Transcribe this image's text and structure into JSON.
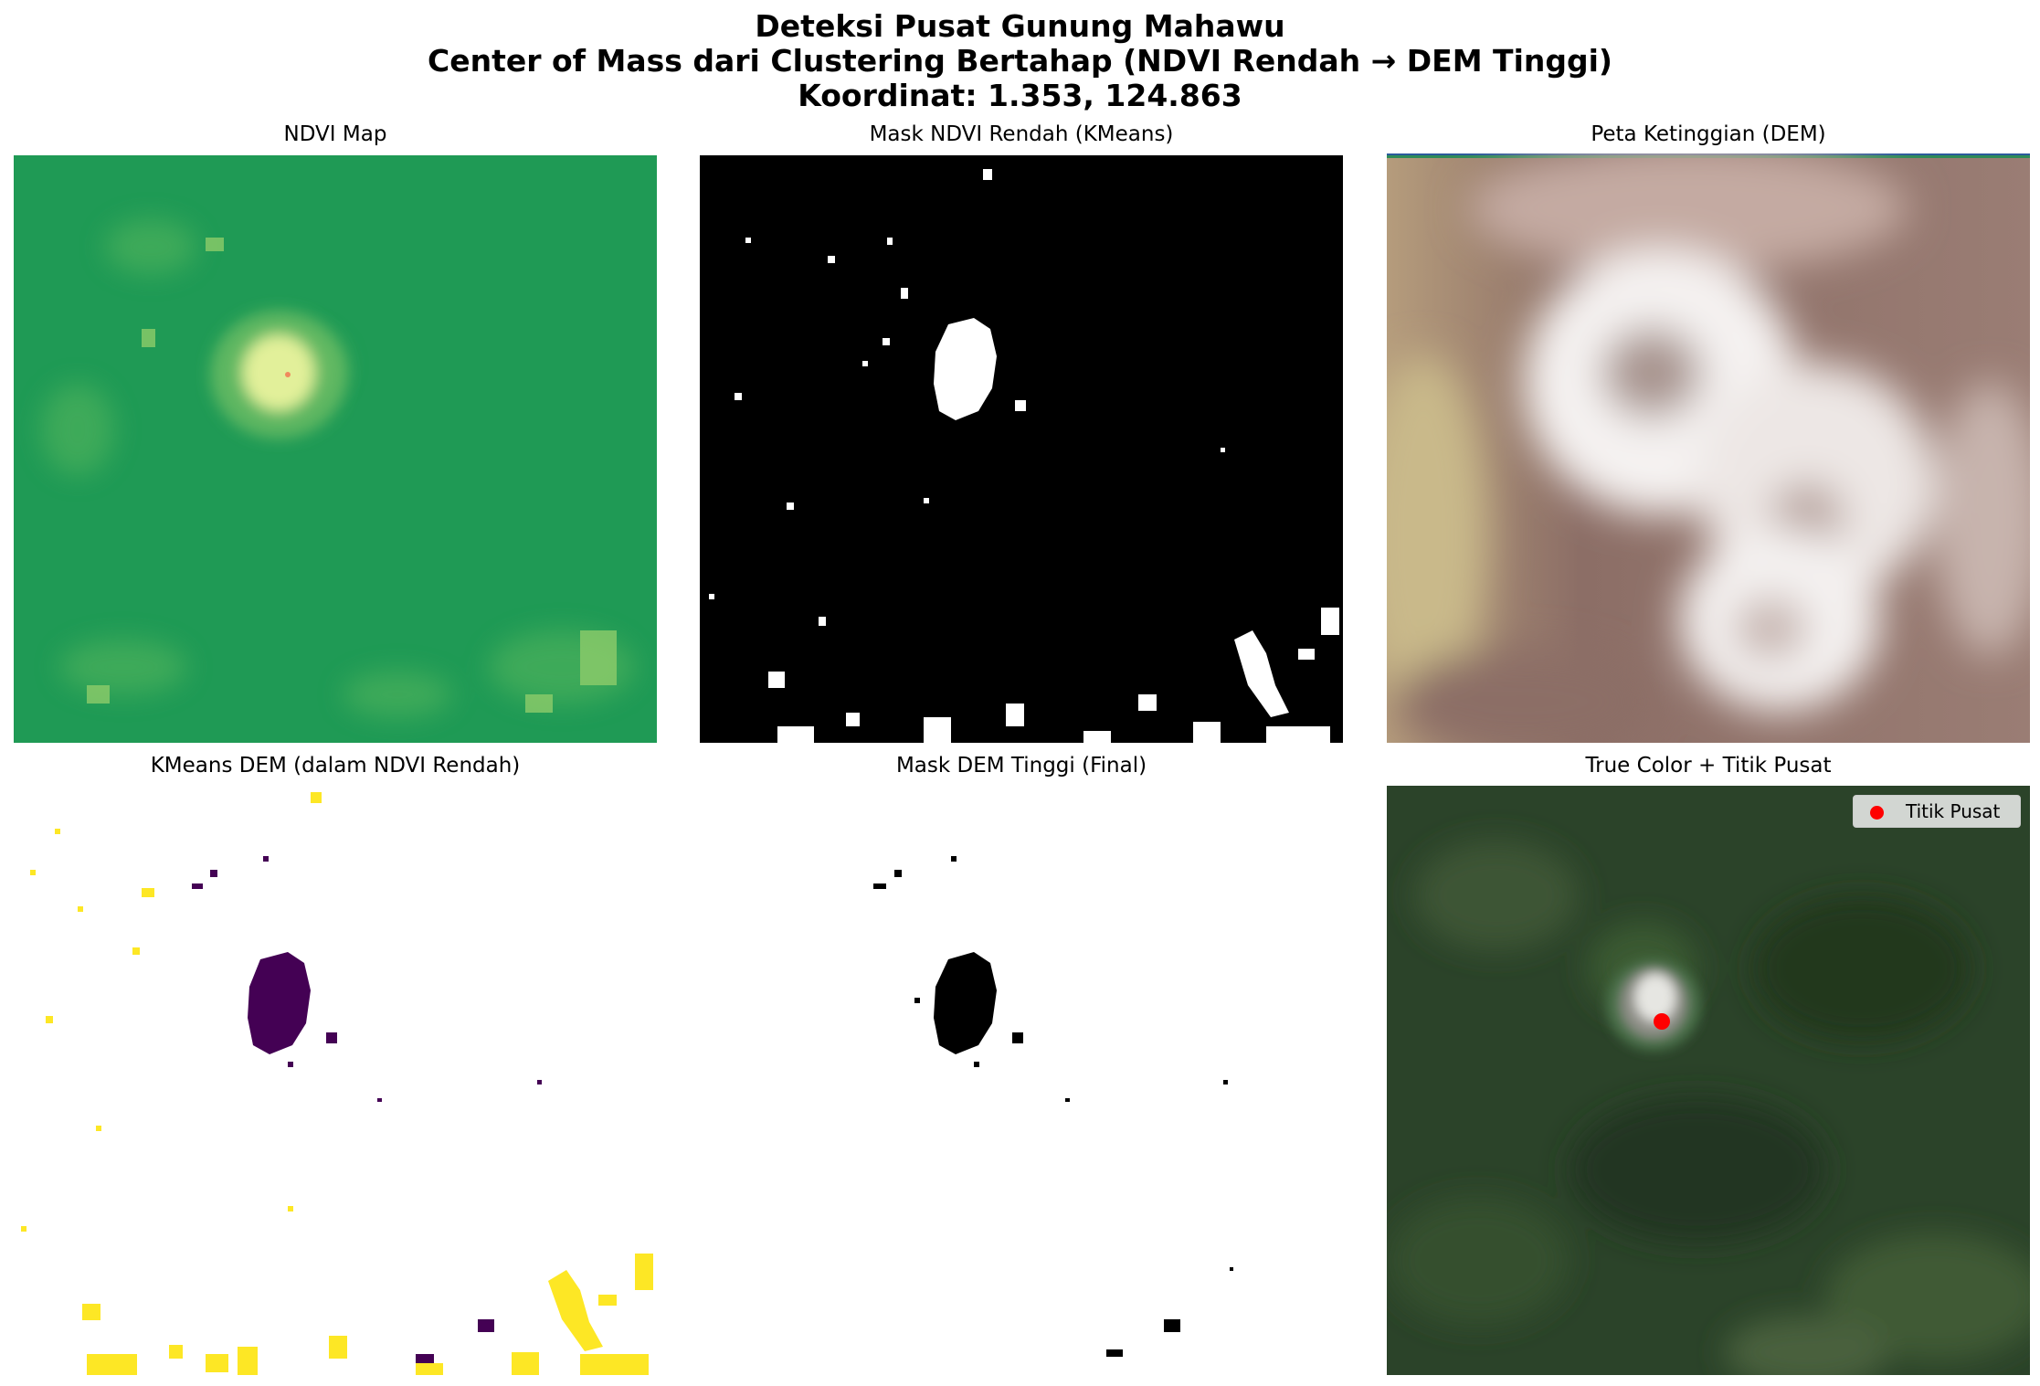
{
  "figure": {
    "title_line1": "Deteksi Pusat Gunung Mahawu",
    "title_line2": "Center of Mass dari Clustering Bertahap (NDVI Rendah → DEM Tinggi)",
    "title_line3": "Koordinat: 1.353, 124.863"
  },
  "panels": {
    "ndvi": {
      "title": "NDVI Map",
      "colormap": "RdYlGn",
      "base_color": "#1f9a55",
      "low_color": "#e2f09a"
    },
    "mask_ndvi": {
      "title": "Mask NDVI Rendah (KMeans)",
      "foreground": "#ffffff",
      "background": "#000000"
    },
    "dem": {
      "title": "Peta Ketinggian (DEM)",
      "colormap": "terrain",
      "low_color": "#c9b98a",
      "mid_color": "#8c6e66",
      "high_color": "#ffffff"
    },
    "kmeans_dem": {
      "title": "KMeans DEM (dalam NDVI Rendah)",
      "cluster_high_color": "#440154",
      "cluster_low_color": "#fde725"
    },
    "mask_dem": {
      "title": "Mask DEM Tinggi (Final)",
      "foreground": "#000000",
      "background": "#ffffff"
    },
    "true_color": {
      "title": "True Color + Titik Pusat",
      "legend_label": "Titik Pusat",
      "marker_color": "#ff0000"
    }
  }
}
